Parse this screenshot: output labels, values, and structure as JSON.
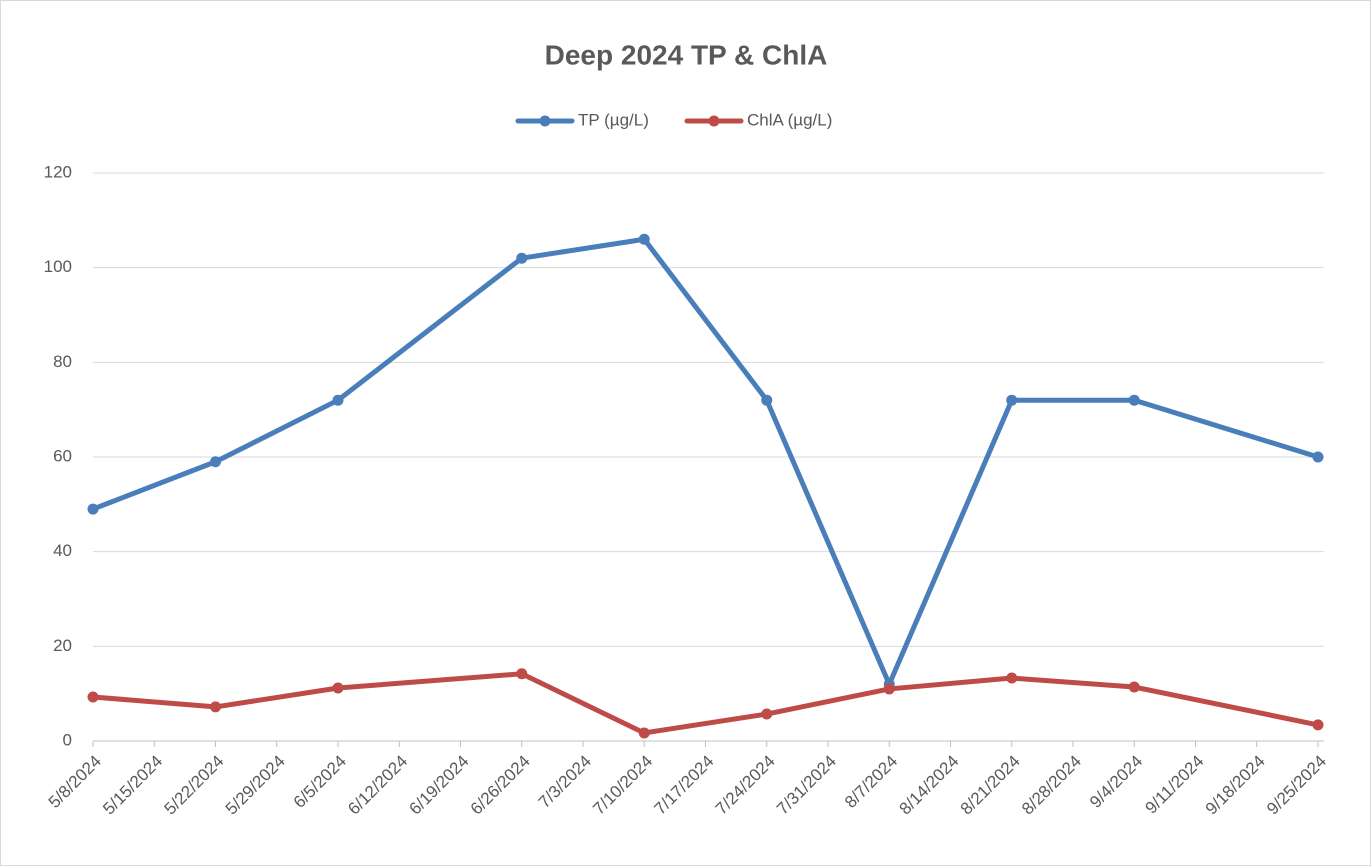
{
  "chart_data": {
    "type": "line",
    "title": "Deep 2024 TP & ChlA",
    "x": [
      "5/8/2024",
      "5/22/2024",
      "6/5/2024",
      "6/26/2024",
      "7/10/2024",
      "7/24/2024",
      "8/7/2024",
      "8/21/2024",
      "9/4/2024",
      "9/25/2024"
    ],
    "series": [
      {
        "name": "TP (µg/L)",
        "color": "#4a7ebb",
        "values": [
          49,
          59,
          72,
          102,
          106,
          72,
          12,
          72,
          72,
          60
        ]
      },
      {
        "name": "ChlA (µg/L)",
        "color": "#be4b48",
        "values": [
          9.3,
          7.2,
          11.2,
          14.2,
          1.7,
          5.7,
          11,
          13.3,
          11.4,
          3.4
        ]
      }
    ],
    "xlim": [
      "5/8/2024",
      "9/25/2024"
    ],
    "xticks": [
      "5/8/2024",
      "5/15/2024",
      "5/22/2024",
      "5/29/2024",
      "6/5/2024",
      "6/12/2024",
      "6/19/2024",
      "6/26/2024",
      "7/3/2024",
      "7/10/2024",
      "7/17/2024",
      "7/24/2024",
      "7/31/2024",
      "8/7/2024",
      "8/14/2024",
      "8/21/2024",
      "8/28/2024",
      "9/4/2024",
      "9/11/2024",
      "9/18/2024",
      "9/25/2024"
    ],
    "ylim": [
      0,
      120
    ],
    "yticks": [
      0,
      20,
      40,
      60,
      80,
      100,
      120
    ],
    "grid": true,
    "legend": "top"
  }
}
